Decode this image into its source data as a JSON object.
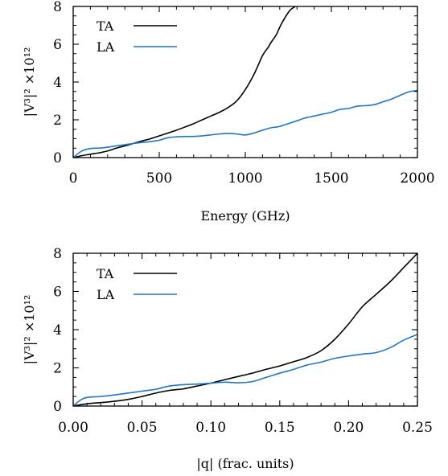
{
  "chart_data": [
    {
      "type": "line",
      "xlabel": "Energy (GHz)",
      "ylabel": "|V³|² ×10¹²",
      "xlim": [
        0,
        2000
      ],
      "ylim": [
        0,
        8
      ],
      "xticks": [
        "0",
        "500",
        "1000",
        "1500",
        "2000"
      ],
      "yticks": [
        "0",
        "2",
        "4",
        "6",
        "8"
      ],
      "grid": false,
      "legend_position": "top-left",
      "series": [
        {
          "name": "TA",
          "color": "#000000",
          "x": [
            0,
            50,
            100,
            150,
            200,
            250,
            300,
            350,
            400,
            450,
            500,
            550,
            600,
            650,
            700,
            750,
            800,
            850,
            900,
            950,
            1000,
            1050,
            1100,
            1130,
            1150,
            1180,
            1200,
            1230,
            1260,
            1290
          ],
          "y": [
            0,
            0.1,
            0.18,
            0.25,
            0.35,
            0.5,
            0.62,
            0.75,
            0.88,
            1.0,
            1.15,
            1.3,
            1.45,
            1.62,
            1.8,
            2.0,
            2.2,
            2.4,
            2.65,
            3.0,
            3.6,
            4.4,
            5.4,
            5.8,
            6.1,
            6.5,
            6.9,
            7.4,
            7.8,
            8.0
          ]
        },
        {
          "name": "LA",
          "color": "#1f77c4",
          "x": [
            0,
            50,
            100,
            150,
            200,
            250,
            300,
            350,
            400,
            450,
            500,
            550,
            600,
            650,
            700,
            750,
            800,
            850,
            900,
            950,
            1000,
            1050,
            1100,
            1150,
            1200,
            1250,
            1300,
            1350,
            1400,
            1450,
            1500,
            1550,
            1600,
            1650,
            1700,
            1750,
            1800,
            1850,
            1900,
            1950,
            2000
          ],
          "y": [
            0,
            0.35,
            0.48,
            0.5,
            0.55,
            0.62,
            0.68,
            0.75,
            0.8,
            0.85,
            0.92,
            1.05,
            1.1,
            1.12,
            1.12,
            1.15,
            1.2,
            1.25,
            1.28,
            1.25,
            1.2,
            1.3,
            1.45,
            1.58,
            1.65,
            1.8,
            1.95,
            2.1,
            2.2,
            2.3,
            2.4,
            2.55,
            2.6,
            2.72,
            2.75,
            2.8,
            2.95,
            3.1,
            3.3,
            3.48,
            3.55
          ]
        }
      ]
    },
    {
      "type": "line",
      "xlabel": "|q| (frac. units)",
      "ylabel": "|V³|² ×10¹²",
      "xlim": [
        0,
        0.25
      ],
      "ylim": [
        0,
        8
      ],
      "xticks": [
        "0.00",
        "0.05",
        "0.10",
        "0.15",
        "0.20",
        "0.25"
      ],
      "yticks": [
        "0",
        "2",
        "4",
        "6",
        "8"
      ],
      "grid": false,
      "legend_position": "top-left",
      "series": [
        {
          "name": "TA",
          "color": "#000000",
          "x": [
            0,
            0.01,
            0.02,
            0.03,
            0.04,
            0.05,
            0.06,
            0.07,
            0.08,
            0.09,
            0.1,
            0.11,
            0.12,
            0.13,
            0.14,
            0.15,
            0.16,
            0.17,
            0.18,
            0.19,
            0.2,
            0.21,
            0.22,
            0.23,
            0.24,
            0.25
          ],
          "y": [
            0,
            0.12,
            0.18,
            0.25,
            0.35,
            0.5,
            0.68,
            0.82,
            0.9,
            1.05,
            1.2,
            1.38,
            1.55,
            1.72,
            1.92,
            2.1,
            2.32,
            2.55,
            2.9,
            3.5,
            4.3,
            5.2,
            5.85,
            6.5,
            7.25,
            8.0
          ]
        },
        {
          "name": "LA",
          "color": "#1f77c4",
          "x": [
            0,
            0.005,
            0.01,
            0.02,
            0.03,
            0.04,
            0.05,
            0.06,
            0.07,
            0.08,
            0.09,
            0.1,
            0.11,
            0.12,
            0.13,
            0.14,
            0.15,
            0.16,
            0.17,
            0.18,
            0.19,
            0.2,
            0.21,
            0.22,
            0.23,
            0.24,
            0.25
          ],
          "y": [
            0,
            0.3,
            0.45,
            0.5,
            0.58,
            0.68,
            0.78,
            0.88,
            1.05,
            1.12,
            1.15,
            1.2,
            1.25,
            1.22,
            1.28,
            1.5,
            1.72,
            1.92,
            2.15,
            2.3,
            2.5,
            2.62,
            2.72,
            2.8,
            3.05,
            3.45,
            3.75
          ]
        }
      ]
    }
  ]
}
